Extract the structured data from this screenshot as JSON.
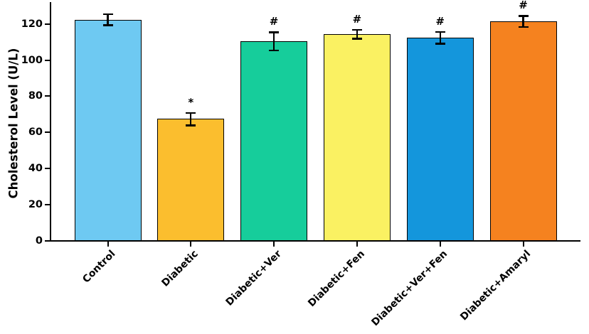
{
  "chart_data": {
    "type": "bar",
    "title": "",
    "xlabel": "",
    "ylabel": "Cholesterol Level (U/L)",
    "categories": [
      "Control",
      "Diabetic",
      "Diabetic+Ver",
      "Diabetic+Fen",
      "Diabetic+Ver+Fen",
      "Diabetic+Amaryl"
    ],
    "values": [
      122,
      67,
      110,
      114,
      112,
      121
    ],
    "errors": [
      3,
      3.5,
      5,
      2.5,
      3.3,
      3
    ],
    "annotations": [
      "",
      "*",
      "#",
      "#",
      "#",
      "#"
    ],
    "bar_colors": [
      "#6EC9F2",
      "#FBBE2E",
      "#16CD9B",
      "#FAF162",
      "#1496DC",
      "#F5821F"
    ],
    "edge_color": "#000000",
    "error_color": "#000000",
    "yticks": [
      0,
      20,
      40,
      60,
      80,
      100,
      120
    ],
    "ylim": [
      0,
      132
    ],
    "grid": false,
    "legend": null
  }
}
